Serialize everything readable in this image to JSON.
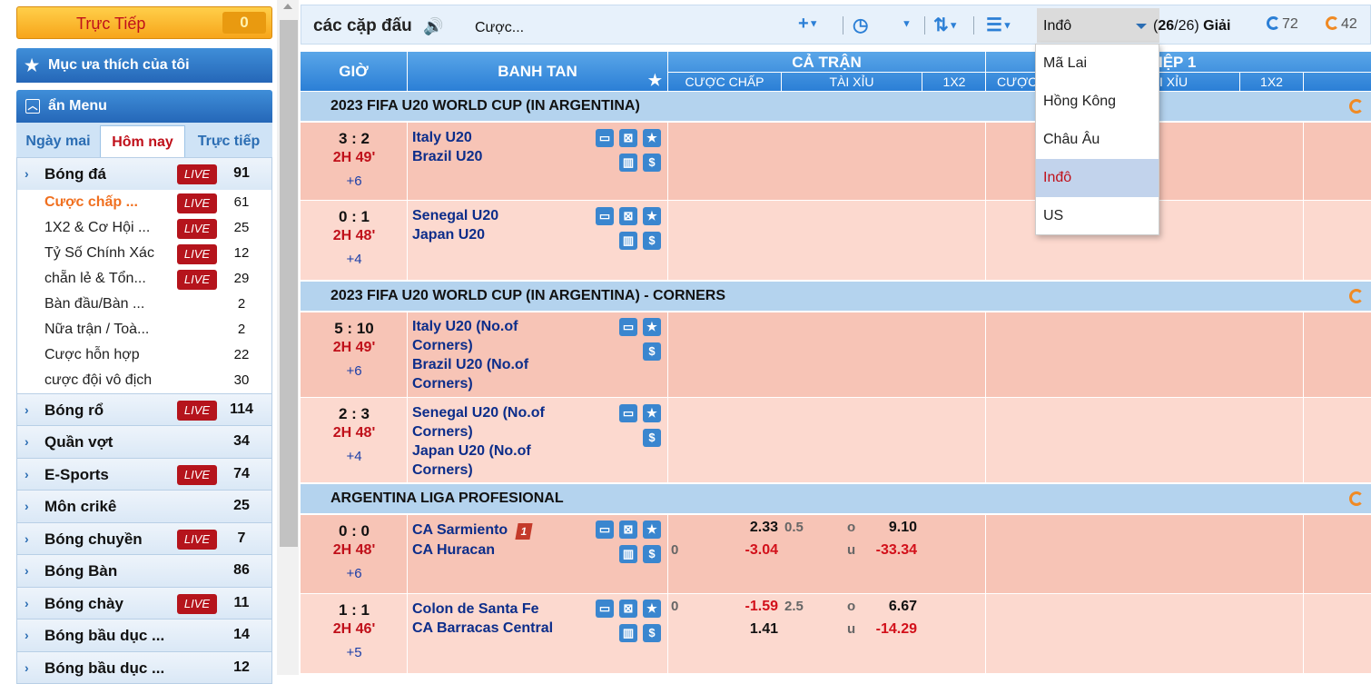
{
  "sidebar": {
    "live_label": "Trực Tiếp",
    "live_count": "0",
    "favorites": "Mục ưa thích của tôi",
    "menu": "ẩn Menu",
    "tabs": [
      "Ngày mai",
      "Hôm nay",
      "Trực tiếp"
    ],
    "live_badge": "LIVE",
    "sports": [
      {
        "name": "Bóng đá",
        "count": "91",
        "live": true,
        "subs": [
          {
            "name": "Cược chấp ...",
            "count": "61",
            "live": true,
            "active": true
          },
          {
            "name": "1X2 & Cơ Hội ...",
            "count": "25",
            "live": true
          },
          {
            "name": "Tỷ Số Chính Xác",
            "count": "12",
            "live": true
          },
          {
            "name": "chẵn lẻ & Tổn...",
            "count": "29",
            "live": true
          },
          {
            "name": "Bàn đầu/Bàn ...",
            "count": "2",
            "live": false
          },
          {
            "name": "Nữa trận / Toà...",
            "count": "2",
            "live": false
          },
          {
            "name": "Cược hỗn hợp",
            "count": "22",
            "live": false
          },
          {
            "name": "cược đội vô địch",
            "count": "30",
            "live": false
          }
        ]
      },
      {
        "name": "Bóng rổ",
        "count": "114",
        "live": true
      },
      {
        "name": "Quần vợt",
        "count": "34",
        "live": false
      },
      {
        "name": "E-Sports",
        "count": "74",
        "live": true
      },
      {
        "name": "Môn crikê",
        "count": "25",
        "live": false
      },
      {
        "name": "Bóng chuyền",
        "count": "7",
        "live": true
      },
      {
        "name": "Bóng Bàn",
        "count": "86",
        "live": false
      },
      {
        "name": "Bóng chày",
        "count": "11",
        "live": true
      },
      {
        "name": "Bóng bầu dục ...",
        "count": "14",
        "live": false
      },
      {
        "name": "Bóng bầu dục ...",
        "count": "12",
        "live": false
      }
    ]
  },
  "toolbar": {
    "title": "các cặp đấu",
    "bet": "Cược...",
    "odds_type": "Inđô",
    "leagues_count": "26",
    "leagues_total": "26",
    "leagues_label": "Giải",
    "refresh1": "72",
    "refresh2": "42"
  },
  "header": {
    "gio": "GIỜ",
    "banh_tan": "BANH TAN",
    "ca_tran": "CẢ TRẬN",
    "hiep1": "IỆP 1",
    "cuoc_chap": "CƯỢC CHẤP",
    "tai_xiu": "TÀI XỈU",
    "x12": "1X2",
    "cuoc_short": "CƯỢC",
    "tai_xiu2": "I XỈU"
  },
  "dropdown": [
    "Mã Lai",
    "Hồng Kông",
    "Châu Âu",
    "Inđô",
    "US"
  ],
  "dropdown_selected": 3,
  "leagues": [
    "2023 FIFA U20 WORLD CUP (IN ARGENTINA)",
    "2023 FIFA U20 WORLD CUP (IN ARGENTINA) - CORNERS",
    "ARGENTINA LIGA PROFESIONAL"
  ],
  "matches": [
    {
      "score": "3 : 2",
      "time": "2H 49'",
      "more": "+6",
      "home": "Italy U20",
      "away": "Brazil U20"
    },
    {
      "score": "0 : 1",
      "time": "2H 48'",
      "more": "+4",
      "home": "Senegal U20",
      "away": "Japan U20"
    },
    {
      "score": "5 : 10",
      "time": "2H 49'",
      "more": "+6",
      "home": "Italy U20 (No.of Corners)",
      "away": "Brazil U20 (No.of Corners)"
    },
    {
      "score": "2 : 3",
      "time": "2H 48'",
      "more": "+4",
      "home": "Senegal U20 (No.of Corners)",
      "away": "Japan U20 (No.of Corners)"
    },
    {
      "score": "0 : 0",
      "time": "2H 48'",
      "more": "+6",
      "home": "CA Sarmiento",
      "away": "CA Huracan",
      "red_card": "1",
      "odds": {
        "hdp_line": "0",
        "hdp_home": "2.33",
        "hdp_away": "-3.04",
        "ou_line": "0.5",
        "over": "o",
        "under": "u",
        "ou_over": "9.10",
        "ou_under": "-33.34"
      }
    },
    {
      "score": "1 : 1",
      "time": "2H 46'",
      "more": "+5",
      "home": "Colon de Santa Fe",
      "away": "CA Barracas Central",
      "odds": {
        "hdp_line": "0",
        "hdp_home": "-1.59",
        "hdp_away": "1.41",
        "ou_line": "2.5",
        "over": "o",
        "under": "u",
        "ou_over": "6.67",
        "ou_under": "-14.29"
      }
    }
  ]
}
